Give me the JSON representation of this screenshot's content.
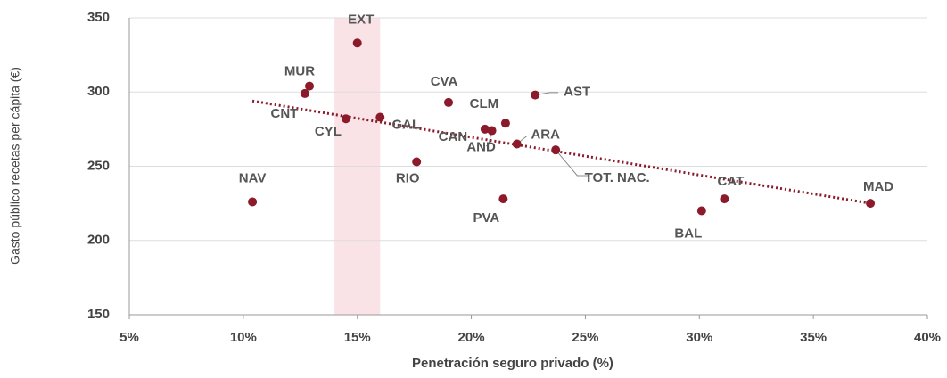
{
  "chart_data": {
    "type": "scatter",
    "xlabel": "Penetración seguro privado (%)",
    "ylabel": "Gasto público recetas per cápita (€)",
    "series": [
      {
        "color": "#8b1a2b",
        "labels": [
          "NAV",
          "MUR",
          "CNT",
          "EXT",
          "CYL",
          "GAL",
          "RIO",
          "CVA",
          "CAN",
          "AND",
          "CLM",
          "ARA",
          "AST",
          "TOT. NAC.",
          "PVA",
          "BAL",
          "CAT",
          "MAD"
        ],
        "x": [
          10.4,
          12.9,
          12.7,
          15.0,
          14.5,
          16.0,
          17.6,
          19.0,
          20.6,
          20.9,
          21.5,
          22.0,
          22.8,
          23.7,
          21.4,
          30.1,
          31.1,
          37.5
        ],
        "values": [
          226,
          304,
          299,
          333,
          282,
          283,
          253,
          293,
          275,
          274,
          279,
          265,
          298,
          261,
          228,
          220,
          228,
          225
        ]
      }
    ],
    "trendline": {
      "color": "#8b1a2b",
      "x": [
        10.4,
        37.5
      ],
      "values": [
        294,
        225
      ]
    },
    "highlight_x": [
      14,
      16
    ],
    "xlim": [
      5,
      40
    ],
    "xticks": [
      {
        "value": 5,
        "label": "5%"
      },
      {
        "value": 10,
        "label": "10%"
      },
      {
        "value": 15,
        "label": "15%"
      },
      {
        "value": 20,
        "label": "20%"
      },
      {
        "value": 25,
        "label": "25%"
      },
      {
        "value": 30,
        "label": "30%"
      },
      {
        "value": 35,
        "label": "35%"
      },
      {
        "value": 40,
        "label": "40%"
      }
    ],
    "ylim": [
      150,
      350
    ],
    "yticks": [
      150,
      200,
      250,
      300,
      350
    ],
    "grid": true
  }
}
